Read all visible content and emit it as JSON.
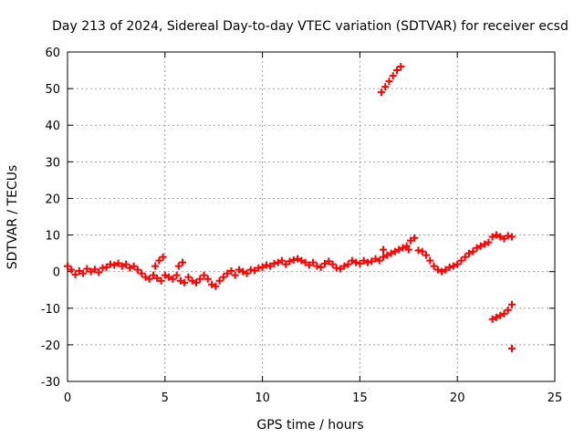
{
  "chart_data": {
    "type": "scatter",
    "title": "Day 213 of 2024, Sidereal Day-to-day VTEC variation (SDTVAR) for receiver ecsd",
    "xlabel": "GPS time / hours",
    "ylabel": "SDTVAR / TECUs",
    "xlim": [
      0,
      25
    ],
    "ylim": [
      -30,
      60
    ],
    "x_ticks": [
      0,
      5,
      10,
      15,
      20,
      25
    ],
    "y_ticks": [
      -30,
      -20,
      -10,
      0,
      10,
      20,
      30,
      40,
      50,
      60
    ],
    "grid": true,
    "marker": "+",
    "color": "#ff0000",
    "series": [
      {
        "name": "SDTVAR",
        "points": [
          [
            0.0,
            1.5
          ],
          [
            0.2,
            0.5
          ],
          [
            0.4,
            -0.8
          ],
          [
            0.6,
            0.2
          ],
          [
            0.8,
            -0.5
          ],
          [
            1.0,
            0.8
          ],
          [
            1.2,
            0.0
          ],
          [
            1.4,
            0.6
          ],
          [
            1.6,
            -0.2
          ],
          [
            1.8,
            1.0
          ],
          [
            2.0,
            1.2
          ],
          [
            2.2,
            2.0
          ],
          [
            2.4,
            1.8
          ],
          [
            2.6,
            2.3
          ],
          [
            2.8,
            1.5
          ],
          [
            3.0,
            2.0
          ],
          [
            3.2,
            1.0
          ],
          [
            3.4,
            1.5
          ],
          [
            3.6,
            0.5
          ],
          [
            3.8,
            -0.5
          ],
          [
            4.0,
            -1.5
          ],
          [
            4.2,
            -2.0
          ],
          [
            4.4,
            -1.0
          ],
          [
            4.6,
            -1.8
          ],
          [
            4.8,
            -2.5
          ],
          [
            5.0,
            -1.0
          ],
          [
            4.5,
            1.5
          ],
          [
            4.7,
            3.0
          ],
          [
            4.9,
            4.0
          ],
          [
            5.2,
            -1.5
          ],
          [
            5.4,
            -2.0
          ],
          [
            5.6,
            -1.0
          ],
          [
            5.8,
            -2.5
          ],
          [
            6.0,
            -3.0
          ],
          [
            5.7,
            1.5
          ],
          [
            5.9,
            2.5
          ],
          [
            6.2,
            -1.5
          ],
          [
            6.4,
            -2.5
          ],
          [
            6.6,
            -3.0
          ],
          [
            6.8,
            -2.0
          ],
          [
            7.0,
            -1.0
          ],
          [
            7.2,
            -2.0
          ],
          [
            7.4,
            -3.5
          ],
          [
            7.6,
            -4.0
          ],
          [
            7.8,
            -2.5
          ],
          [
            8.0,
            -1.5
          ],
          [
            8.2,
            -0.5
          ],
          [
            8.4,
            0.2
          ],
          [
            8.6,
            -1.0
          ],
          [
            8.8,
            0.5
          ],
          [
            9.0,
            0.0
          ],
          [
            9.2,
            -0.5
          ],
          [
            9.4,
            0.5
          ],
          [
            9.6,
            0.3
          ],
          [
            9.8,
            1.0
          ],
          [
            10.0,
            1.2
          ],
          [
            10.2,
            1.8
          ],
          [
            10.4,
            1.5
          ],
          [
            10.6,
            2.2
          ],
          [
            10.8,
            2.5
          ],
          [
            11.0,
            3.0
          ],
          [
            11.2,
            2.0
          ],
          [
            11.4,
            2.8
          ],
          [
            11.6,
            3.2
          ],
          [
            11.8,
            3.5
          ],
          [
            12.0,
            3.0
          ],
          [
            12.2,
            2.5
          ],
          [
            12.4,
            1.8
          ],
          [
            12.6,
            2.5
          ],
          [
            12.8,
            1.5
          ],
          [
            13.0,
            1.2
          ],
          [
            13.2,
            2.2
          ],
          [
            13.4,
            2.8
          ],
          [
            13.6,
            2.0
          ],
          [
            13.8,
            1.0
          ],
          [
            14.0,
            0.8
          ],
          [
            14.2,
            1.5
          ],
          [
            14.4,
            2.0
          ],
          [
            14.6,
            3.0
          ],
          [
            14.8,
            2.5
          ],
          [
            15.0,
            2.2
          ],
          [
            15.2,
            3.0
          ],
          [
            15.4,
            2.5
          ],
          [
            15.6,
            2.8
          ],
          [
            15.8,
            3.5
          ],
          [
            16.0,
            3.0
          ],
          [
            16.2,
            4.0
          ],
          [
            16.4,
            4.5
          ],
          [
            16.2,
            6.0
          ],
          [
            16.6,
            5.0
          ],
          [
            16.8,
            5.5
          ],
          [
            17.0,
            6.0
          ],
          [
            17.2,
            6.5
          ],
          [
            17.4,
            7.0
          ],
          [
            17.6,
            8.5
          ],
          [
            17.8,
            9.2
          ],
          [
            17.5,
            6.0
          ],
          [
            18.0,
            5.8
          ],
          [
            18.2,
            5.5
          ],
          [
            18.4,
            4.5
          ],
          [
            18.6,
            3.0
          ],
          [
            18.8,
            1.5
          ],
          [
            19.0,
            0.5
          ],
          [
            19.2,
            0.0
          ],
          [
            19.4,
            0.5
          ],
          [
            19.6,
            1.2
          ],
          [
            19.8,
            1.5
          ],
          [
            20.0,
            2.0
          ],
          [
            20.2,
            3.0
          ],
          [
            20.4,
            4.0
          ],
          [
            20.6,
            5.0
          ],
          [
            20.8,
            5.5
          ],
          [
            21.0,
            6.5
          ],
          [
            21.2,
            7.0
          ],
          [
            21.4,
            7.5
          ],
          [
            21.6,
            8.0
          ],
          [
            21.8,
            9.5
          ],
          [
            22.0,
            10.0
          ],
          [
            22.2,
            9.5
          ],
          [
            22.4,
            9.0
          ],
          [
            22.6,
            9.8
          ],
          [
            22.8,
            9.5
          ],
          [
            16.1,
            49.0
          ],
          [
            16.3,
            50.5
          ],
          [
            16.5,
            52.0
          ],
          [
            16.7,
            53.5
          ],
          [
            16.9,
            55.0
          ],
          [
            17.1,
            56.0
          ],
          [
            21.8,
            -13.0
          ],
          [
            22.0,
            -12.5
          ],
          [
            22.2,
            -12.0
          ],
          [
            22.4,
            -11.5
          ],
          [
            22.6,
            -10.5
          ],
          [
            22.8,
            -9.0
          ],
          [
            22.8,
            -21.0
          ]
        ]
      }
    ]
  }
}
